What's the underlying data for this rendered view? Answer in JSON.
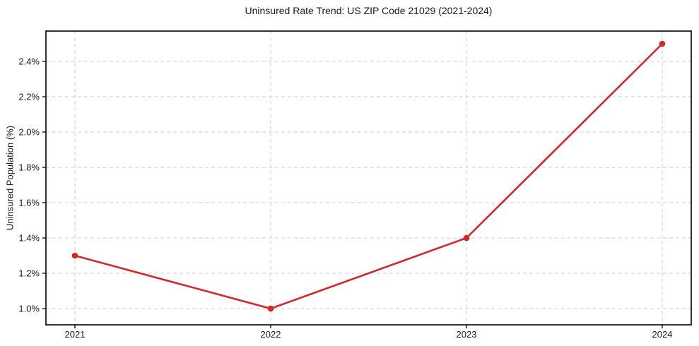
{
  "chart_data": {
    "type": "line",
    "title": "Uninsured Rate Trend: US ZIP Code 21029 (2021-2024)",
    "xlabel": "",
    "ylabel": "Uninsured Population (%)",
    "categories": [
      "2021",
      "2022",
      "2023",
      "2024"
    ],
    "series": [
      {
        "name": "uninsured-rate",
        "values": [
          1.3,
          1.0,
          1.4,
          2.5
        ],
        "color": "#d62728",
        "marker": "circle"
      }
    ],
    "yticks": [
      1.0,
      1.2,
      1.4,
      1.6,
      1.8,
      2.0,
      2.2,
      2.4
    ],
    "ytick_labels": [
      "1.0%",
      "1.2%",
      "1.4%",
      "1.6%",
      "1.8%",
      "2.0%",
      "2.2%",
      "2.4%"
    ],
    "ylim": [
      0.908,
      2.572
    ],
    "grid": true,
    "legend": "none",
    "colors": {
      "line": "#d62728",
      "grid": "#cccccc",
      "spine": "#000000",
      "text": "#1a1a1a",
      "background": "#ffffff"
    }
  }
}
